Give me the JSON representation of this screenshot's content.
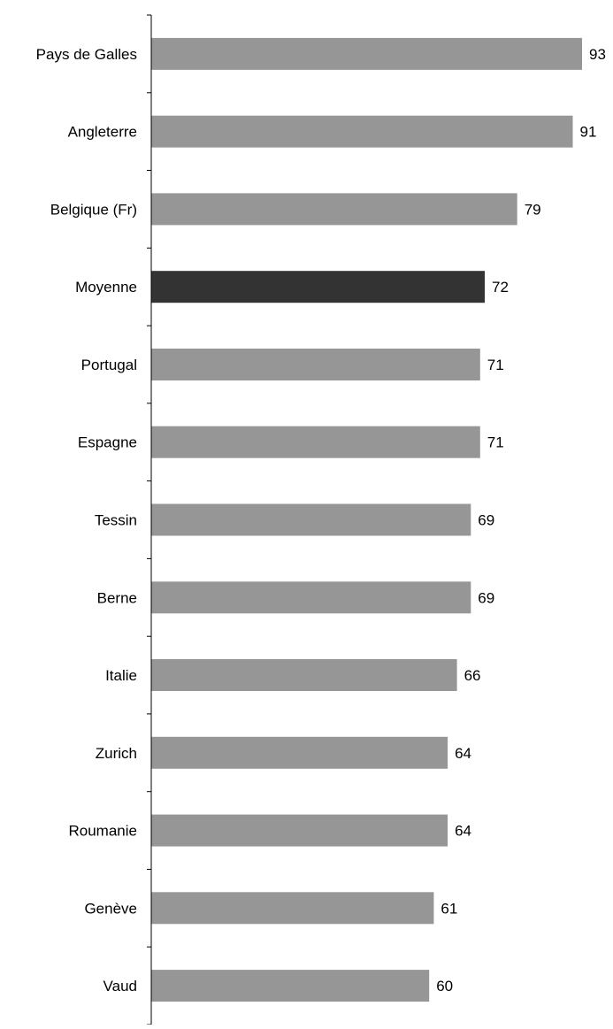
{
  "chart_data": {
    "type": "bar",
    "orientation": "horizontal",
    "title": "",
    "xlabel": "",
    "ylabel": "",
    "categories": [
      "Pays de Galles",
      "Angleterre",
      "Belgique (Fr)",
      "Moyenne",
      "Portugal",
      "Espagne",
      "Tessin",
      "Berne",
      "Italie",
      "Zurich",
      "Roumanie",
      "Genève",
      "Vaud"
    ],
    "values": [
      93,
      91,
      79,
      72,
      71,
      71,
      69,
      69,
      66,
      64,
      64,
      61,
      60
    ],
    "highlight": [
      "Moyenne"
    ],
    "colors": {
      "bar": "#969696",
      "highlight": "#333333",
      "axis": "#000000",
      "text": "#000000"
    },
    "xlim": [
      0,
      100
    ],
    "grid": false,
    "legend": "none",
    "data_labels": true
  }
}
